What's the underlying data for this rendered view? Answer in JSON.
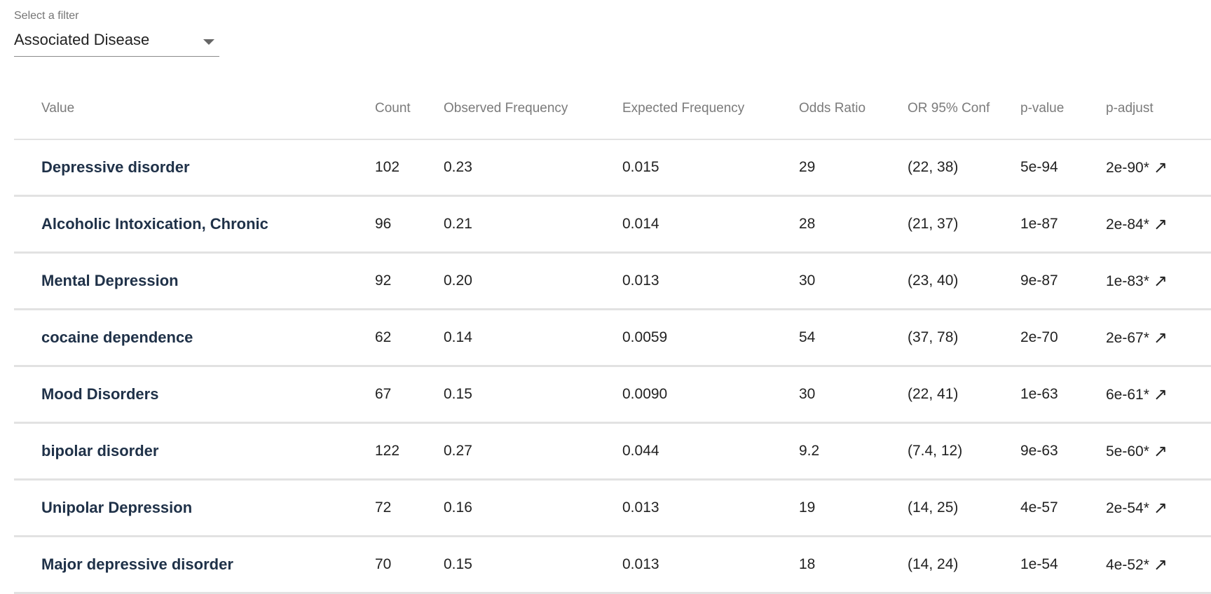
{
  "filter": {
    "label": "Select a filter",
    "selected": "Associated Disease"
  },
  "table": {
    "columns": [
      "Value",
      "Count",
      "Observed Frequency",
      "Expected Frequency",
      "Odds Ratio",
      "OR 95% Conf",
      "p-value",
      "p-adjust"
    ],
    "link_icon": "↗",
    "rows": [
      {
        "value": "Depressive disorder",
        "count": "102",
        "observed": "0.23",
        "expected": "0.015",
        "odds_ratio": "29",
        "or_conf": "(22, 38)",
        "p_value": "5e-94",
        "p_adjust": "2e-90*"
      },
      {
        "value": "Alcoholic Intoxication, Chronic",
        "count": "96",
        "observed": "0.21",
        "expected": "0.014",
        "odds_ratio": "28",
        "or_conf": "(21, 37)",
        "p_value": "1e-87",
        "p_adjust": "2e-84*"
      },
      {
        "value": "Mental Depression",
        "count": "92",
        "observed": "0.20",
        "expected": "0.013",
        "odds_ratio": "30",
        "or_conf": "(23, 40)",
        "p_value": "9e-87",
        "p_adjust": "1e-83*"
      },
      {
        "value": "cocaine dependence",
        "count": "62",
        "observed": "0.14",
        "expected": "0.0059",
        "odds_ratio": "54",
        "or_conf": "(37, 78)",
        "p_value": "2e-70",
        "p_adjust": "2e-67*"
      },
      {
        "value": "Mood Disorders",
        "count": "67",
        "observed": "0.15",
        "expected": "0.0090",
        "odds_ratio": "30",
        "or_conf": "(22, 41)",
        "p_value": "1e-63",
        "p_adjust": "6e-61*"
      },
      {
        "value": "bipolar disorder",
        "count": "122",
        "observed": "0.27",
        "expected": "0.044",
        "odds_ratio": "9.2",
        "or_conf": "(7.4, 12)",
        "p_value": "9e-63",
        "p_adjust": "5e-60*"
      },
      {
        "value": "Unipolar Depression",
        "count": "72",
        "observed": "0.16",
        "expected": "0.013",
        "odds_ratio": "19",
        "or_conf": "(14, 25)",
        "p_value": "4e-57",
        "p_adjust": "2e-54*"
      },
      {
        "value": "Major depressive disorder",
        "count": "70",
        "observed": "0.15",
        "expected": "0.013",
        "odds_ratio": "18",
        "or_conf": "(14, 24)",
        "p_value": "1e-54",
        "p_adjust": "4e-52*"
      }
    ]
  }
}
